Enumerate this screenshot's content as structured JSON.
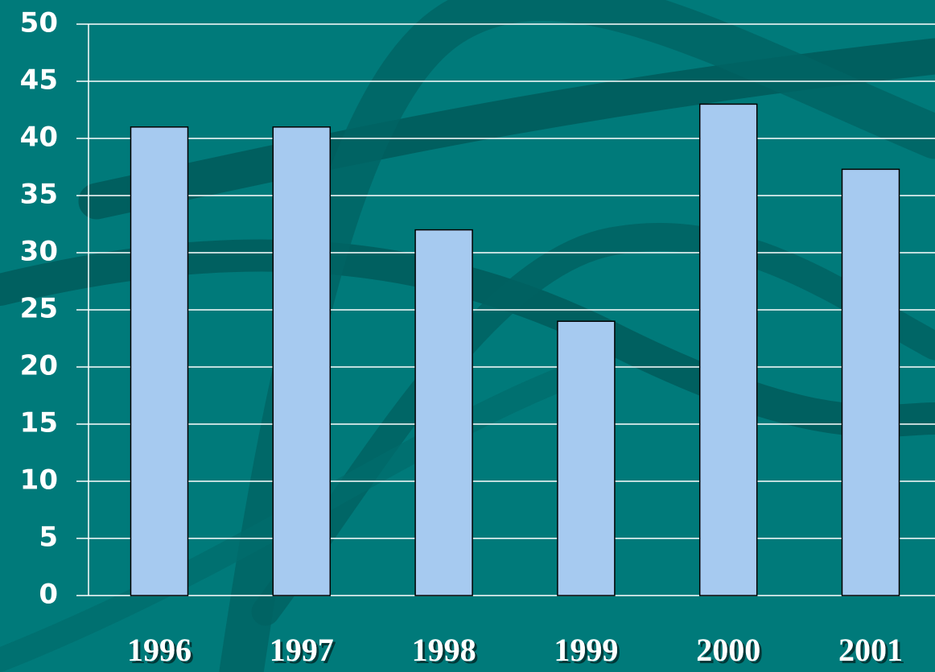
{
  "chart_data": {
    "type": "bar",
    "categories": [
      "1996",
      "1997",
      "1998",
      "1999",
      "2000",
      "2001"
    ],
    "values": [
      41,
      41,
      32,
      24,
      43,
      37.3
    ],
    "color": "#a6caf0",
    "ylim": [
      0,
      50
    ],
    "yticks": [
      0,
      5,
      10,
      15,
      20,
      25,
      30,
      35,
      40,
      45,
      50
    ],
    "grid": true
  }
}
